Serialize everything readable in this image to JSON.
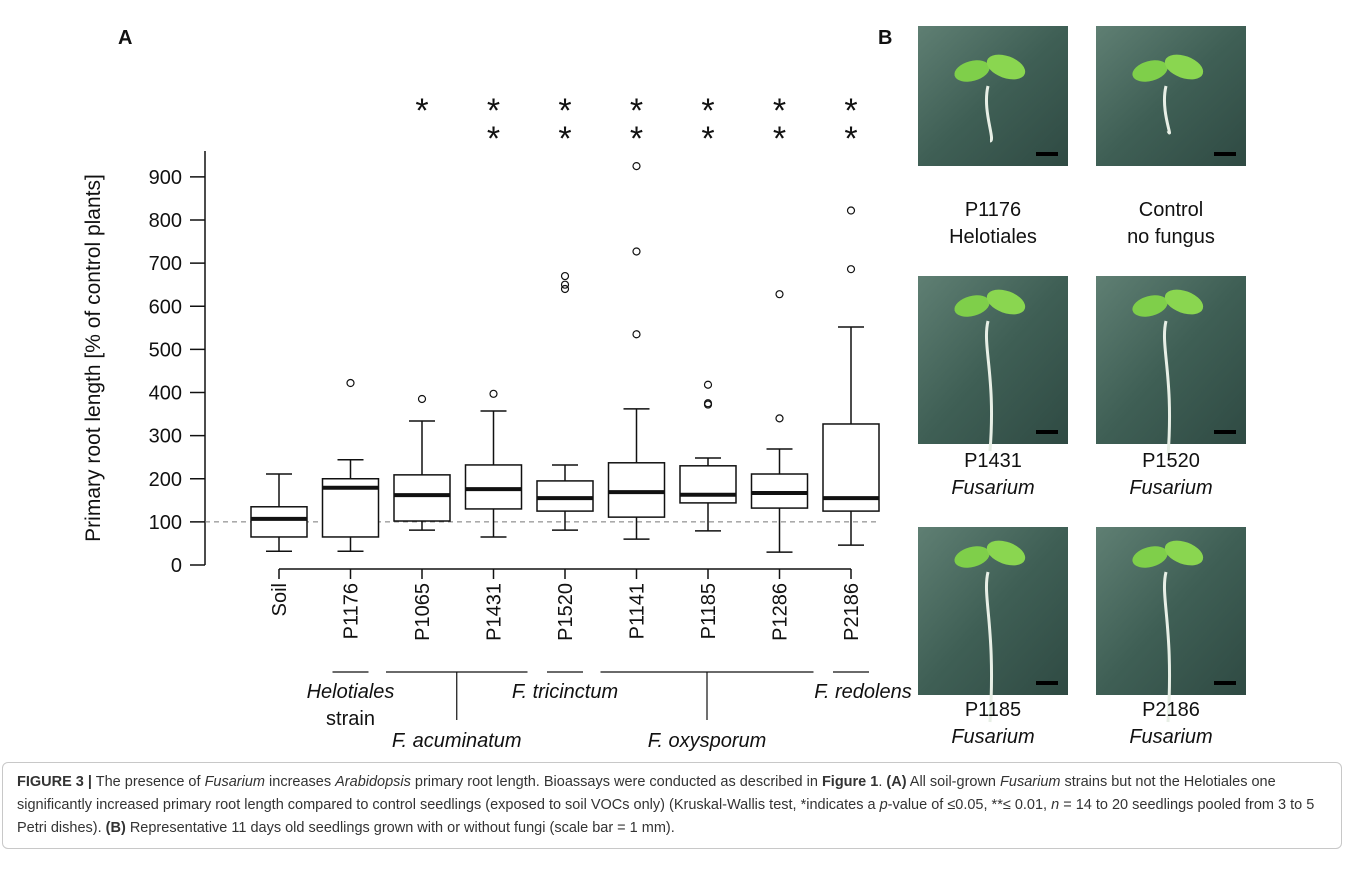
{
  "chart_data": {
    "type": "box",
    "panel_label": "A",
    "y_label": "Primary root length [% of control plants]",
    "categories": [
      "Soil",
      "P1176",
      "P1065",
      "P1431",
      "P1520",
      "P1141",
      "P1185",
      "P1286",
      "P2186"
    ],
    "whisker_low": [
      32,
      32,
      81,
      65,
      81,
      60,
      79,
      30,
      46
    ],
    "q1": [
      65,
      65,
      102,
      130,
      125,
      111,
      144,
      132,
      125
    ],
    "median": [
      107,
      179,
      162,
      176,
      155,
      169,
      163,
      167,
      155
    ],
    "q3": [
      135,
      200,
      209,
      232,
      195,
      237,
      230,
      211,
      327
    ],
    "whisker_high": [
      211,
      244,
      334,
      357,
      232,
      362,
      248,
      269,
      552
    ],
    "outliers": [
      [],
      [
        422
      ],
      [
        385
      ],
      [
        397
      ],
      [
        670,
        650,
        640
      ],
      [
        925,
        727,
        535
      ],
      [
        418,
        375,
        372
      ],
      [
        628,
        340
      ],
      [
        822,
        686
      ]
    ],
    "significance": [
      null,
      null,
      "*",
      "**",
      "**",
      "**",
      "**",
      "**",
      "**"
    ],
    "reference_line": 100,
    "groups": [
      {
        "label": [
          "Helotiales",
          "strain"
        ],
        "italic": [
          true,
          false
        ],
        "first": 1,
        "last": 1
      },
      {
        "label": [
          "F. acuminatum"
        ],
        "italic": [
          true
        ],
        "first": 2,
        "last": 3
      },
      {
        "label": [
          "F. tricinctum"
        ],
        "italic": [
          true
        ],
        "first": 4,
        "last": 4
      },
      {
        "label": [
          "F. oxysporum"
        ],
        "italic": [
          true
        ],
        "first": 5,
        "last": 7
      },
      {
        "label": [
          "F. redolens"
        ],
        "italic": [
          true
        ],
        "first": 8,
        "last": 8
      }
    ],
    "ylim": [
      0,
      960
    ],
    "yticks": [
      0,
      100,
      200,
      300,
      400,
      500,
      600,
      700,
      800,
      900
    ]
  },
  "panel_b": {
    "panel_label": "B",
    "panels": [
      {
        "name": "P1176",
        "desc": "Helotiales",
        "italic": false
      },
      {
        "name": "Control",
        "desc": "no fungus",
        "italic": false
      },
      {
        "name": "P1431",
        "desc": "Fusarium",
        "italic": true
      },
      {
        "name": "P1520",
        "desc": "Fusarium",
        "italic": true
      },
      {
        "name": "P1185",
        "desc": "Fusarium",
        "italic": true
      },
      {
        "name": "P2186",
        "desc": "Fusarium",
        "italic": true
      }
    ]
  },
  "caption": {
    "runs": [
      {
        "text": "FIGURE 3 |",
        "style": "bold"
      },
      {
        "text": " The presence of "
      },
      {
        "text": "Fusarium",
        "style": "italic"
      },
      {
        "text": " increases "
      },
      {
        "text": "Arabidopsis",
        "style": "italic"
      },
      {
        "text": " primary root length. Bioassays were conducted as described in "
      },
      {
        "text": "Figure 1",
        "style": "bold"
      },
      {
        "text": ". "
      },
      {
        "text": "(A)",
        "style": "bold"
      },
      {
        "text": " All soil-grown "
      },
      {
        "text": "Fusarium",
        "style": "italic"
      },
      {
        "text": " strains but not the Helotiales one significantly increased primary root length compared to control seedlings (exposed to soil VOCs only) (Kruskal-Wallis test, *indicates a "
      },
      {
        "text": "p",
        "style": "italic"
      },
      {
        "text": "-value of ≤0.05, **≤ 0.01, "
      },
      {
        "text": "n",
        "style": "italic"
      },
      {
        "text": " = 14 to 20 seedlings pooled from 3 to 5 Petri dishes). "
      },
      {
        "text": "(B)",
        "style": "bold"
      },
      {
        "text": " Representative 11 days old seedlings grown with or without fungi (scale bar = 1 mm)."
      }
    ]
  }
}
